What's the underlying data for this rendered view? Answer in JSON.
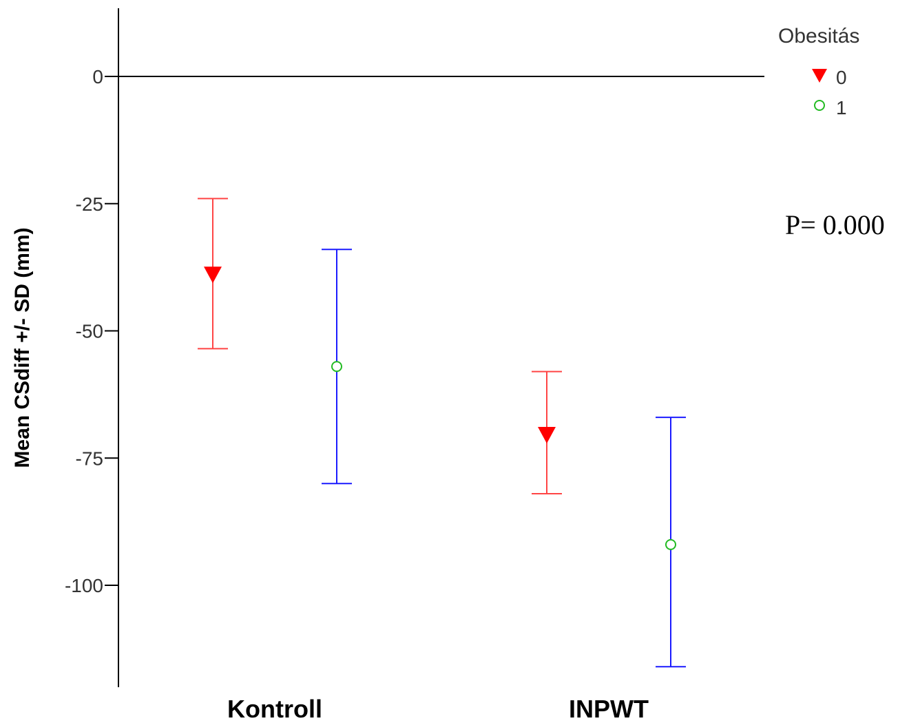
{
  "chart_data": {
    "type": "errorbar",
    "categories": [
      "Kontroll",
      "INPWT"
    ],
    "ylabel": "Mean CSdiff +/- SD (mm)",
    "ylim": [
      -118,
      13
    ],
    "yticks": [
      0,
      -25,
      -50,
      -75,
      -100
    ],
    "ytick_labels": [
      "0",
      "-25",
      "-50",
      "-75",
      "-100"
    ],
    "reference_line": 0,
    "legend": {
      "title": "Obesitás",
      "placement": "top-right"
    },
    "series": [
      {
        "name": "0",
        "marker": "triangle-down-filled",
        "marker_color": "#ff0000",
        "bar_color": "#ff4444",
        "mean": [
          -39,
          -70.5
        ],
        "upper": [
          -24,
          -58
        ],
        "lower": [
          -53.5,
          -82
        ]
      },
      {
        "name": "1",
        "marker": "circle-open",
        "marker_color": "#22bb22",
        "bar_color": "#1a1aff",
        "mean": [
          -57,
          -92
        ],
        "upper": [
          -34,
          -67
        ],
        "lower": [
          -80,
          -116
        ]
      }
    ],
    "annotation": "P= 0.000"
  }
}
